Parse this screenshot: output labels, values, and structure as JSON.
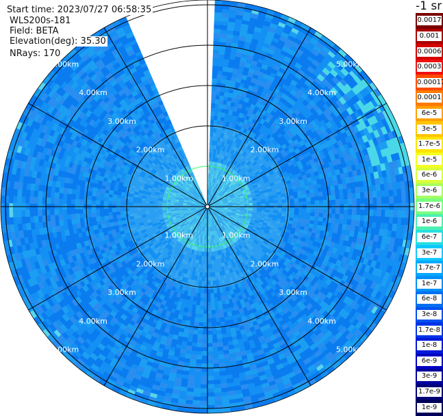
{
  "info": {
    "start_time": "Start time: 2023/07/27 06:58:35",
    "device": "WLS200s-181",
    "field": "Field: BETA",
    "elevation": "Elevation(deg): 35.30",
    "nrays": "NRays: 170"
  },
  "unit_label": "-1 sr",
  "range_rings": [
    "1.00km",
    "2.00km",
    "3.00km",
    "4.00km",
    "5.00km"
  ],
  "colorbar": {
    "labels": [
      "0.0017",
      "0.001",
      "0.0006",
      "0.0003",
      "0.00017",
      "0.0001",
      "6e-5",
      "3e-5",
      "1.7e-5",
      "1e-5",
      "6e-6",
      "3e-6",
      "1.7e-6",
      "1e-6",
      "6e-7",
      "3e-7",
      "1.7e-7",
      "1e-7",
      "6e-8",
      "3e-8",
      "1.7e-8",
      "1e-8",
      "6e-9",
      "3e-9",
      "1.7e-9",
      "1e-9"
    ],
    "colors": [
      "#7a0000",
      "#aa0000",
      "#d40000",
      "#f01010",
      "#ff4a00",
      "#ff7a00",
      "#ffa000",
      "#ffc400",
      "#ffe400",
      "#f4ff20",
      "#d8ff3a",
      "#a6ff60",
      "#78ff80",
      "#4cf0b0",
      "#28e0e0",
      "#10c8ff",
      "#00a8ff",
      "#0090f8",
      "#0070f0",
      "#0050f0",
      "#0034e8",
      "#0018d8",
      "#0000c0",
      "#00009c",
      "#000078",
      "#00005a"
    ]
  },
  "scan": {
    "blanked_sectors_deg": [
      [
        0,
        1.5
      ],
      [
        336,
        360
      ]
    ],
    "missing_rays_deg": [
      [
        0,
        1.5
      ]
    ]
  }
}
